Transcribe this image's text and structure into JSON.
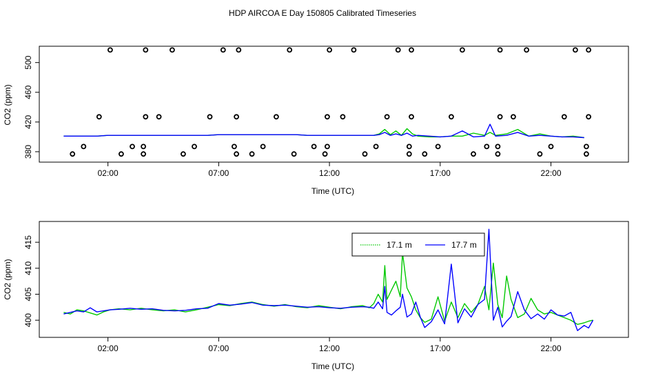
{
  "title": "HDP AIRCOA E  Day 150805  Calibrated Timeseries",
  "colors": {
    "green": "#00c800",
    "blue": "#0000ff",
    "axis": "#000000"
  },
  "chart_data": [
    {
      "type": "line",
      "xlabel": "Time (UTC)",
      "ylabel": "CO2 (ppm)",
      "xticks": [
        2,
        7,
        12,
        17,
        22
      ],
      "xtick_labels": [
        "02:00",
        "07:00",
        "12:00",
        "17:00",
        "22:00"
      ],
      "yticks": [
        380,
        420,
        460,
        500
      ],
      "ylim": [
        366,
        522
      ],
      "xlim": [
        -1.1,
        25.5
      ],
      "series": [
        {
          "color": "green",
          "x": [
            0,
            0.5,
            1,
            1.5,
            2,
            2.5,
            3,
            3.5,
            4,
            4.5,
            5,
            5.5,
            6,
            6.5,
            7,
            7.5,
            8,
            8.5,
            9,
            9.5,
            10,
            10.5,
            11,
            11.5,
            12,
            12.5,
            13,
            13.5,
            14,
            14.25,
            14.5,
            14.75,
            15,
            15.25,
            15.5,
            15.75,
            16,
            16.5,
            17,
            17.5,
            18,
            18.5,
            19,
            19.25,
            19.5,
            20,
            20.5,
            21,
            21.5,
            22,
            22.5,
            23,
            23.5
          ],
          "values": [
            401,
            401,
            401,
            401,
            402,
            402,
            402,
            402,
            402,
            402,
            402,
            402,
            402,
            402,
            403,
            403,
            403,
            403,
            403,
            403,
            403,
            403,
            402,
            402,
            402,
            402,
            402,
            402,
            402,
            404,
            410,
            403,
            408,
            402,
            411,
            404,
            401,
            400,
            400,
            401,
            401,
            405,
            402,
            406,
            402,
            404,
            410,
            401,
            404,
            401,
            400,
            401,
            399
          ]
        },
        {
          "color": "blue",
          "x": [
            0,
            0.5,
            1,
            1.5,
            2,
            2.5,
            3,
            3.5,
            4,
            4.5,
            5,
            5.5,
            6,
            6.5,
            7,
            7.5,
            8,
            8.5,
            9,
            9.5,
            10,
            10.5,
            11,
            11.5,
            12,
            12.5,
            13,
            13.5,
            14,
            14.25,
            14.5,
            14.75,
            15,
            15.25,
            15.5,
            15.75,
            16,
            16.5,
            17,
            17.5,
            18,
            18.5,
            19,
            19.25,
            19.5,
            20,
            20.5,
            21,
            21.5,
            22,
            22.5,
            23,
            23.5
          ],
          "values": [
            401,
            401,
            401,
            401,
            402,
            402,
            402,
            402,
            402,
            402,
            402,
            402,
            402,
            402,
            403,
            403,
            403,
            403,
            403,
            403,
            403,
            403,
            402,
            402,
            402,
            402,
            402,
            402,
            402,
            403,
            406,
            402,
            404,
            402,
            405,
            401,
            402,
            401,
            400,
            401,
            408,
            400,
            401,
            417,
            401,
            402,
            406,
            401,
            402,
            401,
            400,
            400,
            399
          ]
        }
      ],
      "points_x": [
        0.4,
        0.9,
        1.6,
        2.1,
        2.6,
        3.1,
        3.6,
        3.6,
        3.7,
        3.7,
        4.3,
        4.9,
        5.4,
        5.9,
        6.6,
        7.2,
        7.7,
        7.8,
        7.8,
        7.9,
        8.5,
        9.0,
        9.6,
        10.2,
        10.4,
        11.3,
        11.8,
        11.9,
        11.9,
        12.0,
        12.6,
        13.1,
        13.6,
        14.1,
        14.6,
        15.1,
        15.6,
        15.6,
        15.7,
        15.7,
        16.3,
        16.9,
        17.5,
        18.0,
        18.5,
        19.1,
        19.6,
        19.6,
        19.7,
        19.7,
        20.3,
        20.9,
        21.5,
        22.0,
        22.6,
        23.1,
        23.6,
        23.6,
        23.7,
        23.7
      ],
      "points_y": [
        377,
        387,
        427,
        517,
        377,
        387,
        377,
        387,
        427,
        517,
        427,
        517,
        377,
        387,
        427,
        517,
        387,
        377,
        427,
        517,
        377,
        387,
        427,
        517,
        377,
        387,
        377,
        387,
        427,
        517,
        427,
        517,
        377,
        387,
        427,
        517,
        387,
        377,
        427,
        517,
        377,
        387,
        427,
        517,
        377,
        387,
        377,
        387,
        427,
        517,
        427,
        517,
        377,
        387,
        427,
        517,
        387,
        377,
        427,
        517
      ]
    },
    {
      "type": "line",
      "xlabel": "Time (UTC)",
      "ylabel": "CO2 (ppm)",
      "xticks": [
        2,
        7,
        12,
        17,
        22
      ],
      "xtick_labels": [
        "02:00",
        "07:00",
        "12:00",
        "17:00",
        "22:00"
      ],
      "yticks": [
        400,
        405,
        410,
        415
      ],
      "ylim": [
        396.7,
        419
      ],
      "xlim": [
        -1.1,
        25.5
      ],
      "legend": [
        "17.1 m",
        "17.7 m"
      ],
      "legend_position": "top-right",
      "series": [
        {
          "name": "17.1 m",
          "color": "green",
          "x": [
            0,
            0.3,
            0.6,
            0.9,
            1.2,
            1.5,
            1.8,
            2.1,
            2.5,
            3,
            3.5,
            4,
            4.5,
            5,
            5.5,
            6,
            6.5,
            7,
            7.5,
            8,
            8.5,
            9,
            9.5,
            10,
            10.5,
            11,
            11.5,
            12,
            12.5,
            13,
            13.5,
            13.8,
            14.0,
            14.2,
            14.4,
            14.5,
            14.6,
            14.8,
            15.0,
            15.2,
            15.3,
            15.5,
            15.7,
            15.9,
            16.1,
            16.3,
            16.6,
            16.9,
            17.2,
            17.5,
            17.8,
            18.1,
            18.4,
            18.7,
            19.0,
            19.2,
            19.4,
            19.6,
            19.8,
            20.0,
            20.2,
            20.5,
            20.8,
            21.1,
            21.4,
            21.7,
            22,
            22.3,
            22.6,
            22.9,
            23.2,
            23.5,
            23.7,
            23.9
          ],
          "values": [
            401.5,
            401.2,
            402,
            401.8,
            401.4,
            401,
            401.6,
            402,
            402.2,
            402,
            402.3,
            402,
            401.8,
            402,
            401.6,
            402,
            402.5,
            403,
            402.8,
            403.2,
            403.5,
            403,
            402.7,
            403,
            402.6,
            402.4,
            402.8,
            402.5,
            402.2,
            402.6,
            402.8,
            402.4,
            403.2,
            405,
            403.5,
            410.5,
            404,
            405.8,
            407.5,
            404.5,
            413,
            406.2,
            404.5,
            402,
            400.5,
            399.6,
            400.2,
            404.5,
            399.8,
            403.5,
            400.5,
            403.2,
            401.5,
            403,
            406.5,
            402,
            411,
            403,
            400.5,
            408.5,
            404,
            400.5,
            401.2,
            404.2,
            402,
            401.2,
            401.5,
            401,
            400.5,
            400,
            399.2,
            399.5,
            399.8,
            400
          ]
        },
        {
          "name": "17.7 m",
          "color": "blue",
          "x": [
            0,
            0.3,
            0.6,
            0.9,
            1.2,
            1.5,
            1.8,
            2.1,
            2.5,
            3,
            3.5,
            4,
            4.5,
            5,
            5.5,
            6,
            6.5,
            7,
            7.5,
            8,
            8.5,
            9,
            9.5,
            10,
            10.5,
            11,
            11.5,
            12,
            12.5,
            13,
            13.5,
            13.8,
            14.0,
            14.2,
            14.4,
            14.5,
            14.6,
            14.8,
            15.0,
            15.2,
            15.3,
            15.5,
            15.7,
            15.9,
            16.1,
            16.3,
            16.6,
            16.9,
            17.2,
            17.5,
            17.8,
            18.1,
            18.4,
            18.7,
            19.0,
            19.2,
            19.4,
            19.6,
            19.8,
            20.0,
            20.2,
            20.5,
            20.8,
            21.1,
            21.4,
            21.7,
            22,
            22.3,
            22.6,
            22.9,
            23.2,
            23.5,
            23.7,
            23.9
          ],
          "values": [
            401.2,
            401.5,
            401.8,
            401.6,
            402.4,
            401.6,
            401.8,
            402,
            402.1,
            402.3,
            402.1,
            402.2,
            401.9,
            401.8,
            401.9,
            402.2,
            402.3,
            403.2,
            402.9,
            403.1,
            403.4,
            402.9,
            402.8,
            402.9,
            402.7,
            402.5,
            402.6,
            402.4,
            402.3,
            402.5,
            402.6,
            402.5,
            402.3,
            403.5,
            402.2,
            406.5,
            401.5,
            401,
            401.8,
            402.5,
            405,
            400.6,
            401.2,
            403.5,
            400.6,
            398.6,
            399.7,
            402,
            399.3,
            410.8,
            399.5,
            402.2,
            400.6,
            403,
            404,
            417.5,
            400,
            402.5,
            398.7,
            399.8,
            400.7,
            405.5,
            402,
            400.3,
            401.2,
            400.2,
            402,
            401,
            400.8,
            401.5,
            398,
            399,
            398.5,
            400
          ]
        }
      ]
    }
  ]
}
